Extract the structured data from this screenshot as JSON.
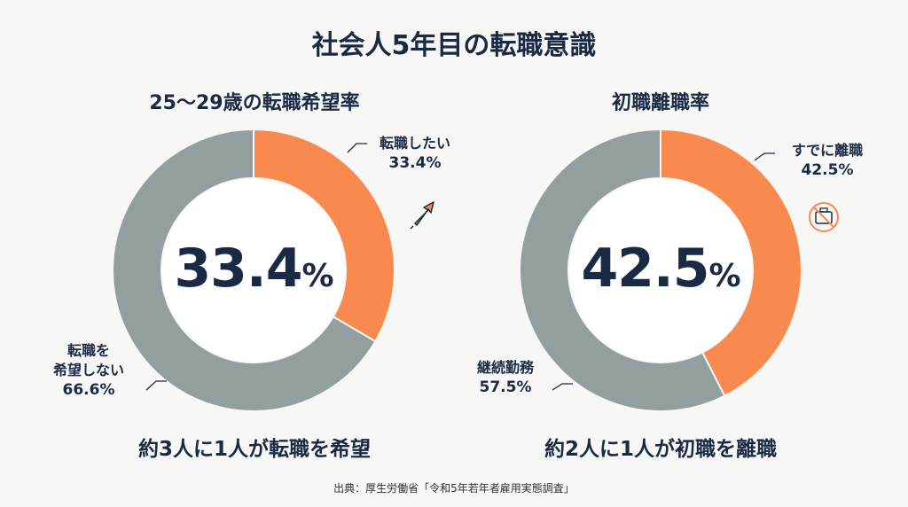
{
  "title": "社会人5年目の転職意識",
  "colors": {
    "accent": "#f98a4f",
    "neutral": "#939f9e",
    "text": "#1b2a44"
  },
  "chart_data": [
    {
      "type": "pie",
      "title": "25〜29歳の転職希望率",
      "center_value": "33.4",
      "center_unit": "%",
      "slices": [
        {
          "label": "転職したい",
          "value": 33.4,
          "display": "33.4%",
          "color": "#f98a4f"
        },
        {
          "label_lines": [
            "転職を",
            "希望しない"
          ],
          "value": 66.6,
          "display": "66.6%",
          "color": "#939f9e"
        }
      ],
      "caption": "約3人に1人が転職を希望",
      "icon": "arrow-up-right-icon"
    },
    {
      "type": "pie",
      "title": "初職離職率",
      "center_value": "42.5",
      "center_unit": "%",
      "slices": [
        {
          "label": "すでに離職",
          "value": 42.5,
          "display": "42.5%",
          "color": "#f98a4f"
        },
        {
          "label": "継続勤務",
          "value": 57.5,
          "display": "57.5%",
          "color": "#939f9e"
        }
      ],
      "caption": "約2人に1人が初職を離職",
      "icon": "no-briefcase-icon"
    }
  ],
  "source": "出典：厚生労働省「令和5年若年者雇用実態調査」"
}
